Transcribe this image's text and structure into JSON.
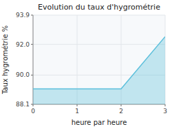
{
  "chart_data": {
    "type": "area",
    "title": "Evolution du taux d'hygrométrie",
    "xlabel": "heure par heure",
    "ylabel": "Taux hygrométrie %",
    "x": [
      0,
      2,
      3
    ],
    "values": [
      89.1,
      89.1,
      92.5
    ],
    "color": "#5bbfdb",
    "xlim": [
      0,
      3
    ],
    "ylim": [
      88.1,
      93.9
    ],
    "xticks": [
      0,
      1,
      2,
      3
    ],
    "yticks": [
      88.1,
      {
        "value": 90.0,
        "label": "90.0"
      },
      {
        "value": 92.0,
        "label": "92.0"
      },
      93.9
    ],
    "grid": true
  }
}
